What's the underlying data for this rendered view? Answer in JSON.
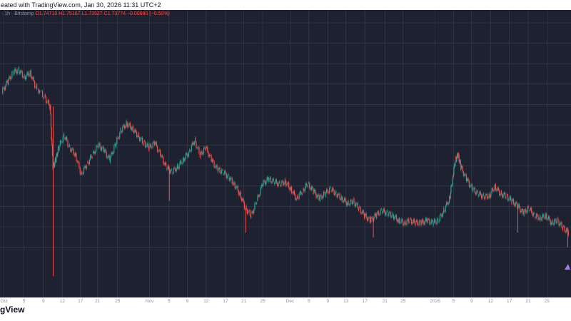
{
  "header": {
    "text": "eated with TradingView.com, Jan 30, 2026 11:31 UTC+2"
  },
  "legend": {
    "symbol": "· 1h · Bitstamp",
    "open": "O1.74710",
    "high": "H1.75167",
    "low": "L1.73527",
    "close": "C1.73774",
    "change": "−0.00880 (−0.50%)"
  },
  "brand": {
    "text": "gView"
  },
  "colors": {
    "background": "#1e2130",
    "grid": "#3a3f50",
    "up": "#26a69a",
    "down": "#ef5350",
    "axis_text": "#8a8f9c"
  },
  "chart_data": {
    "type": "line",
    "title": "",
    "xlabel": "",
    "ylabel": "",
    "tick_labels": [
      "Oct",
      "5",
      "9",
      "12",
      "17",
      "21",
      "25",
      "Nov",
      "5",
      "9",
      "12",
      "17",
      "21",
      "25",
      "Dec",
      "5",
      "9",
      "13",
      "17",
      "21",
      "25",
      "2026",
      "5",
      "9",
      "12",
      "17",
      "21",
      "25"
    ],
    "tick_positions": [
      0.007,
      0.042,
      0.076,
      0.109,
      0.141,
      0.171,
      0.206,
      0.262,
      0.296,
      0.328,
      0.361,
      0.395,
      0.427,
      0.46,
      0.508,
      0.541,
      0.574,
      0.606,
      0.639,
      0.674,
      0.706,
      0.762,
      0.794,
      0.826,
      0.859,
      0.892,
      0.925,
      0.958
    ],
    "x_range": [
      0,
      1
    ],
    "ylim": [
      0,
      1
    ],
    "grid": true,
    "series": [
      {
        "points": [
          [
            0.0,
            0.78
          ],
          [
            0.01,
            0.82
          ],
          [
            0.02,
            0.86
          ],
          [
            0.03,
            0.87
          ],
          [
            0.04,
            0.84
          ],
          [
            0.05,
            0.86
          ],
          [
            0.06,
            0.8
          ],
          [
            0.075,
            0.76
          ],
          [
            0.085,
            0.72
          ],
          [
            0.09,
            0.47
          ],
          [
            0.095,
            0.5
          ],
          [
            0.1,
            0.55
          ],
          [
            0.11,
            0.6
          ],
          [
            0.12,
            0.55
          ],
          [
            0.13,
            0.52
          ],
          [
            0.14,
            0.44
          ],
          [
            0.15,
            0.48
          ],
          [
            0.16,
            0.52
          ],
          [
            0.17,
            0.56
          ],
          [
            0.18,
            0.54
          ],
          [
            0.19,
            0.5
          ],
          [
            0.2,
            0.56
          ],
          [
            0.21,
            0.62
          ],
          [
            0.22,
            0.65
          ],
          [
            0.23,
            0.63
          ],
          [
            0.24,
            0.6
          ],
          [
            0.25,
            0.57
          ],
          [
            0.26,
            0.55
          ],
          [
            0.27,
            0.57
          ],
          [
            0.28,
            0.52
          ],
          [
            0.29,
            0.47
          ],
          [
            0.3,
            0.45
          ],
          [
            0.31,
            0.47
          ],
          [
            0.32,
            0.5
          ],
          [
            0.33,
            0.53
          ],
          [
            0.34,
            0.58
          ],
          [
            0.35,
            0.52
          ],
          [
            0.36,
            0.55
          ],
          [
            0.37,
            0.5
          ],
          [
            0.38,
            0.46
          ],
          [
            0.39,
            0.45
          ],
          [
            0.4,
            0.43
          ],
          [
            0.41,
            0.4
          ],
          [
            0.42,
            0.36
          ],
          [
            0.43,
            0.3
          ],
          [
            0.44,
            0.27
          ],
          [
            0.45,
            0.33
          ],
          [
            0.46,
            0.4
          ],
          [
            0.47,
            0.42
          ],
          [
            0.48,
            0.41
          ],
          [
            0.49,
            0.4
          ],
          [
            0.5,
            0.41
          ],
          [
            0.51,
            0.38
          ],
          [
            0.52,
            0.34
          ],
          [
            0.53,
            0.37
          ],
          [
            0.54,
            0.4
          ],
          [
            0.55,
            0.37
          ],
          [
            0.56,
            0.34
          ],
          [
            0.57,
            0.36
          ],
          [
            0.58,
            0.38
          ],
          [
            0.59,
            0.36
          ],
          [
            0.6,
            0.34
          ],
          [
            0.61,
            0.32
          ],
          [
            0.62,
            0.33
          ],
          [
            0.63,
            0.3
          ],
          [
            0.64,
            0.27
          ],
          [
            0.65,
            0.25
          ],
          [
            0.66,
            0.27
          ],
          [
            0.67,
            0.29
          ],
          [
            0.68,
            0.28
          ],
          [
            0.69,
            0.27
          ],
          [
            0.7,
            0.25
          ],
          [
            0.71,
            0.24
          ],
          [
            0.72,
            0.25
          ],
          [
            0.73,
            0.24
          ],
          [
            0.74,
            0.24
          ],
          [
            0.75,
            0.25
          ],
          [
            0.76,
            0.24
          ],
          [
            0.77,
            0.25
          ],
          [
            0.78,
            0.29
          ],
          [
            0.79,
            0.34
          ],
          [
            0.795,
            0.42
          ],
          [
            0.8,
            0.5
          ],
          [
            0.805,
            0.52
          ],
          [
            0.81,
            0.47
          ],
          [
            0.82,
            0.42
          ],
          [
            0.83,
            0.38
          ],
          [
            0.84,
            0.36
          ],
          [
            0.85,
            0.35
          ],
          [
            0.86,
            0.35
          ],
          [
            0.87,
            0.39
          ],
          [
            0.88,
            0.36
          ],
          [
            0.89,
            0.35
          ],
          [
            0.9,
            0.33
          ],
          [
            0.91,
            0.31
          ],
          [
            0.92,
            0.28
          ],
          [
            0.93,
            0.3
          ],
          [
            0.94,
            0.27
          ],
          [
            0.95,
            0.26
          ],
          [
            0.96,
            0.27
          ],
          [
            0.97,
            0.24
          ],
          [
            0.98,
            0.25
          ],
          [
            0.99,
            0.22
          ],
          [
            1.0,
            0.2
          ]
        ]
      }
    ],
    "wicks": [
      {
        "x": 0.09,
        "low": 0.02,
        "high": 0.72
      },
      {
        "x": 0.295,
        "low": 0.33,
        "high": 0.47
      },
      {
        "x": 0.43,
        "low": 0.2,
        "high": 0.3
      },
      {
        "x": 0.655,
        "low": 0.18,
        "high": 0.26
      },
      {
        "x": 0.91,
        "low": 0.2,
        "high": 0.31
      },
      {
        "x": 0.998,
        "low": 0.14,
        "high": 0.22
      }
    ]
  }
}
